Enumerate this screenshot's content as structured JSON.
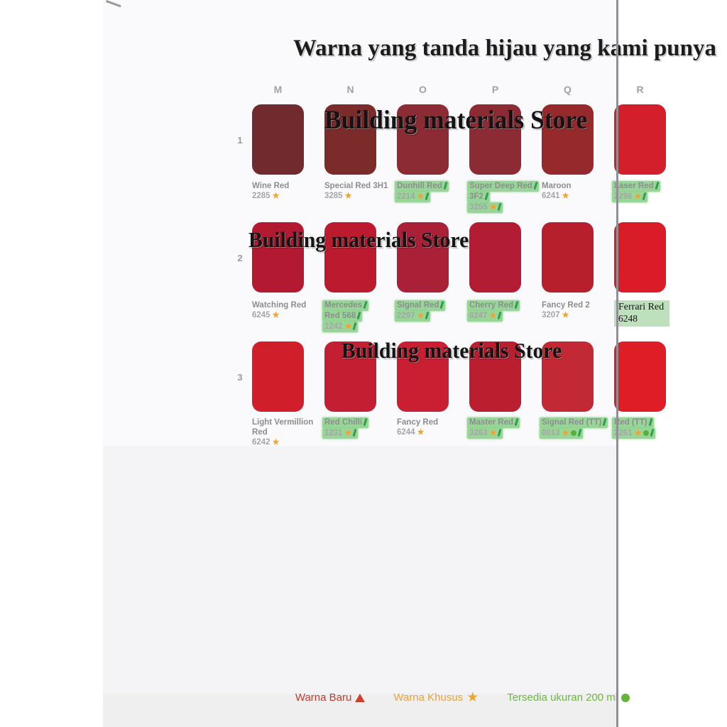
{
  "page": {
    "title": "Warna yang tanda hijau yang kami punya",
    "watermark": "Building materials Store"
  },
  "columns": [
    "M",
    "N",
    "O",
    "P",
    "Q",
    "R"
  ],
  "rows": [
    {
      "number": "1",
      "cells": [
        {
          "col": "M",
          "color": "#712b2f",
          "name_lines": [
            "Wine Red"
          ],
          "code": "2285",
          "star": true,
          "highlight": false,
          "pen": false,
          "dot": false
        },
        {
          "col": "N",
          "color": "#7c2b2b",
          "name_lines": [
            "Special Red 3H1"
          ],
          "code": "3285",
          "star": true,
          "highlight": false,
          "pen": false,
          "dot": false
        },
        {
          "col": "O",
          "color": "#8c2b33",
          "name_lines": [
            "Dunhill Red"
          ],
          "code": "2214",
          "star": true,
          "highlight": true,
          "pen": true,
          "dot": false
        },
        {
          "col": "P",
          "color": "#8d2b35",
          "name_lines": [
            "Super Deep Red",
            "3F2"
          ],
          "code": "3255",
          "star": true,
          "highlight": true,
          "pen": true,
          "dot": false
        },
        {
          "col": "Q",
          "color": "#95292c",
          "name_lines": [
            "Maroon"
          ],
          "code": "6241",
          "star": true,
          "highlight": false,
          "pen": false,
          "dot": false
        },
        {
          "col": "R",
          "color": "#d21f2b",
          "name_lines": [
            "Laser Red"
          ],
          "code": "2296",
          "star": true,
          "highlight": true,
          "pen": true,
          "dot": false
        }
      ]
    },
    {
      "number": "2",
      "cells": [
        {
          "col": "M",
          "color": "#b31a31",
          "name_lines": [
            "Watching Red"
          ],
          "code": "6245",
          "star": true,
          "highlight": false,
          "pen": false,
          "dot": false
        },
        {
          "col": "N",
          "color": "#bb1a2f",
          "name_lines": [
            "Mercedes",
            "Red 568"
          ],
          "code": "1242",
          "star": true,
          "highlight": true,
          "pen": true,
          "dot": false
        },
        {
          "col": "O",
          "color": "#a92037",
          "name_lines": [
            "Signal Red"
          ],
          "code": "2297",
          "star": true,
          "highlight": true,
          "pen": true,
          "dot": false
        },
        {
          "col": "P",
          "color": "#b31d33",
          "name_lines": [
            "Cherry Red"
          ],
          "code": "6247",
          "star": true,
          "highlight": true,
          "pen": true,
          "dot": false
        },
        {
          "col": "Q",
          "color": "#b71f2d",
          "name_lines": [
            "Fancy Red 2"
          ],
          "code": "3207",
          "star": true,
          "highlight": false,
          "pen": false,
          "dot": false
        },
        {
          "col": "R",
          "color": "#da1b28",
          "name_lines": [
            "Ferrari Red"
          ],
          "code": "6248",
          "star": false,
          "highlight": false,
          "pen": false,
          "dot": false,
          "box": true
        }
      ]
    },
    {
      "number": "3",
      "cells": [
        {
          "col": "M",
          "color": "#d01e2b",
          "name_lines": [
            "Light Vermillion",
            "Red"
          ],
          "code": "6242",
          "star": true,
          "highlight": false,
          "pen": false,
          "dot": false
        },
        {
          "col": "N",
          "color": "#c31e31",
          "name_lines": [
            "Red Chilli"
          ],
          "code": "1231",
          "star": true,
          "highlight": true,
          "pen": true,
          "dot": false
        },
        {
          "col": "O",
          "color": "#ca1e33",
          "name_lines": [
            "Fancy Red"
          ],
          "code": "6244",
          "star": true,
          "highlight": false,
          "pen": false,
          "dot": false
        },
        {
          "col": "P",
          "color": "#ba1e2f",
          "name_lines": [
            "Master Red"
          ],
          "code": "3263",
          "star": true,
          "highlight": true,
          "pen": true,
          "dot": false
        },
        {
          "col": "Q",
          "color": "#c32934",
          "name_lines": [
            "Signal Red (TT)"
          ],
          "code": "0013",
          "star": true,
          "highlight": true,
          "pen": true,
          "dot": true
        },
        {
          "col": "R",
          "color": "#df1d27",
          "name_lines": [
            "Red (TT)"
          ],
          "code": "2261",
          "star": true,
          "highlight": true,
          "pen": true,
          "dot": true
        }
      ]
    }
  ],
  "legend": [
    {
      "label": "Warna Baru",
      "symbol": "triangle",
      "color": "#c9382a"
    },
    {
      "label": "Warna Khusus",
      "symbol": "star",
      "color": "#e8a33d"
    },
    {
      "label": "Tersedia ukuran 200 ml",
      "symbol": "dot",
      "color": "#72b249"
    }
  ],
  "colors": {
    "highlight": "#98d698",
    "ferrari_box": "#bfe0bd",
    "star": "#f0a232",
    "pen_mark": "#2f9e4f",
    "available_dot": "#55b13b",
    "page_edge": "#909094"
  }
}
